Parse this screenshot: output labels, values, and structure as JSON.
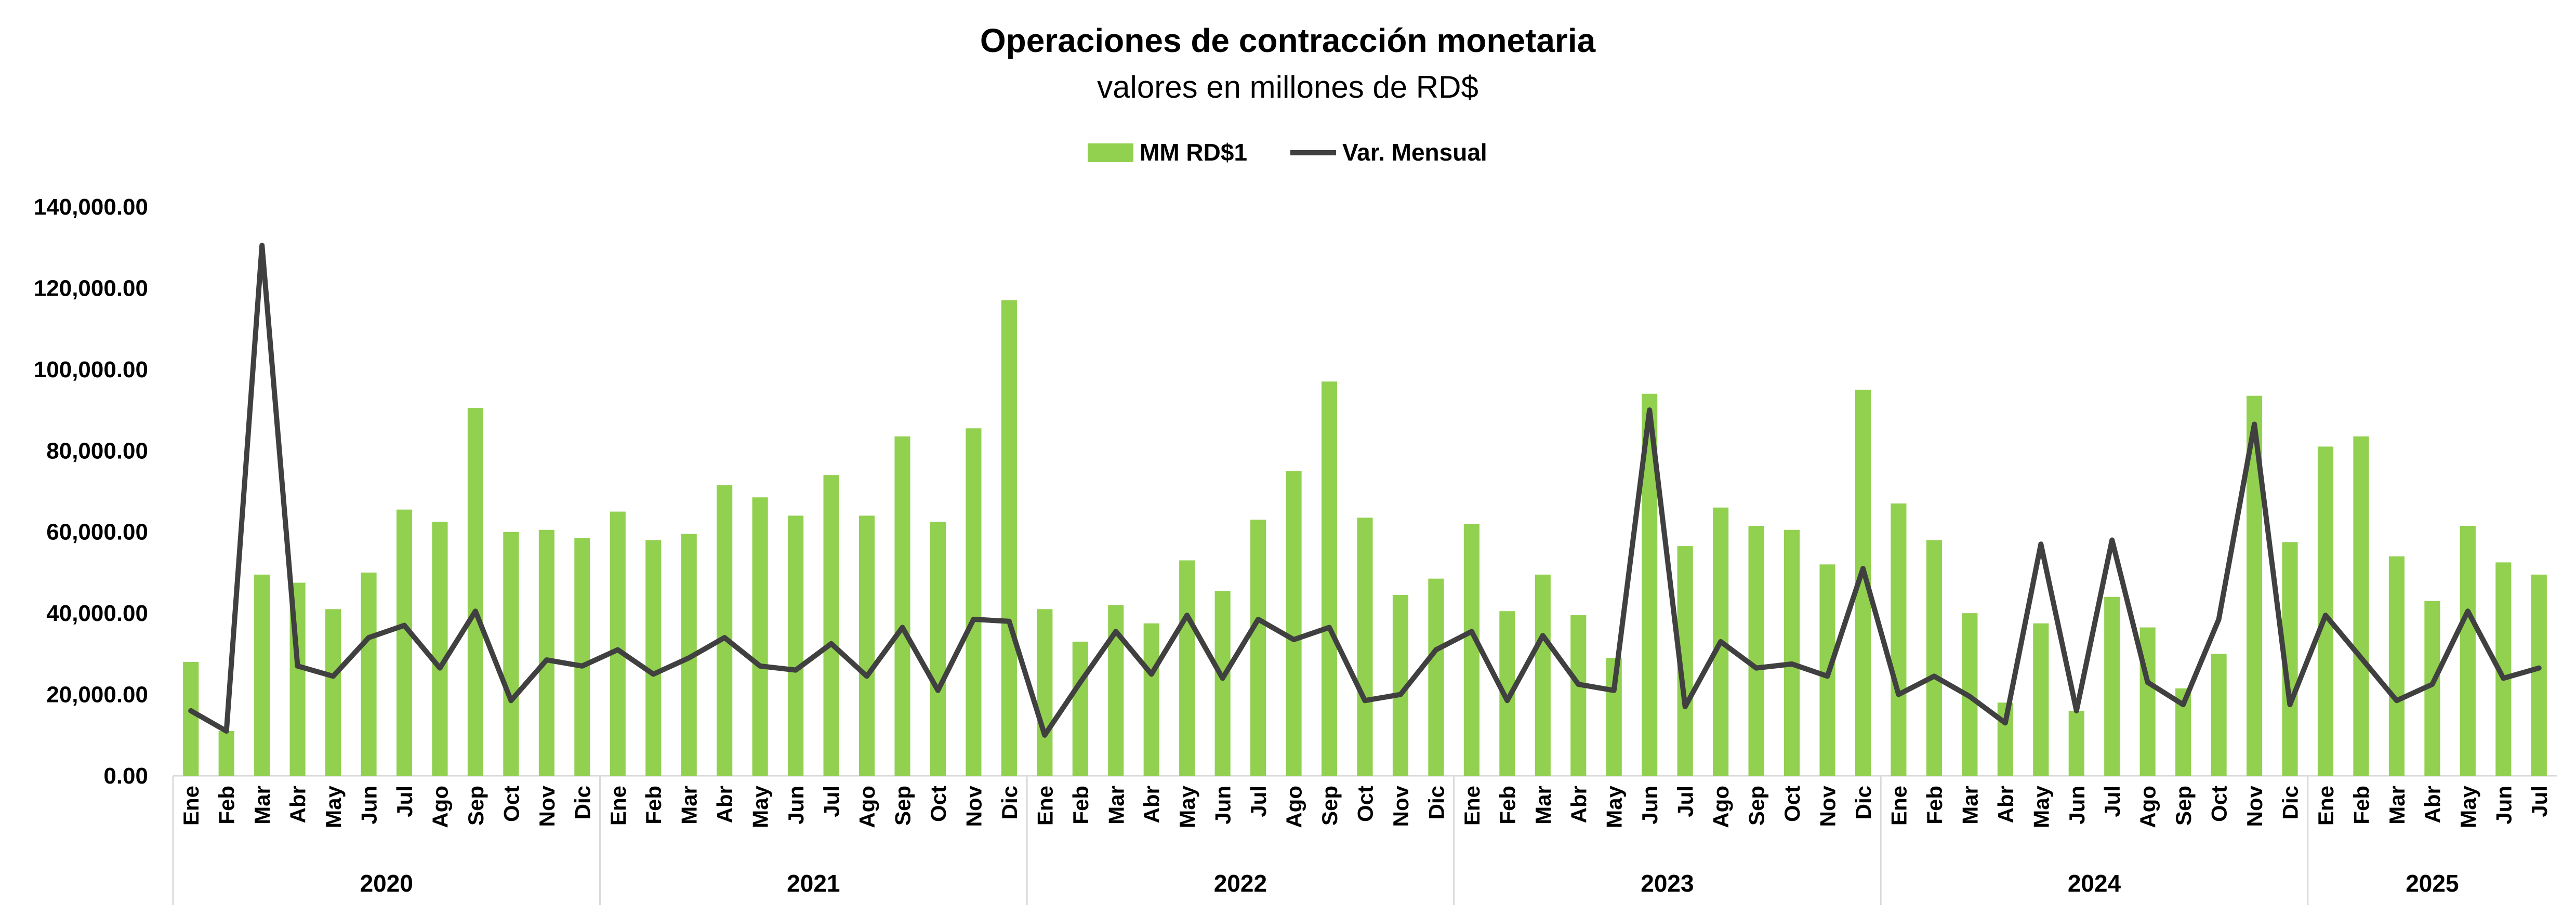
{
  "chart_data": {
    "type": "bar",
    "title": "Operaciones de contracción monetaria",
    "subtitle": "valores en millones de RD$",
    "ylim": [
      0,
      140000
    ],
    "yticks": [
      0,
      20000,
      40000,
      60000,
      80000,
      100000,
      120000,
      140000
    ],
    "ytick_labels": [
      "0.00",
      "20,000.00",
      "40,000.00",
      "60,000.00",
      "80,000.00",
      "100,000.00",
      "120,000.00",
      "140,000.00"
    ],
    "legend_position": "top-center",
    "months": [
      "Ene",
      "Feb",
      "Mar",
      "Abr",
      "May",
      "Jun",
      "Jul",
      "Ago",
      "Sep",
      "Oct",
      "Nov",
      "Dic"
    ],
    "years": [
      {
        "label": "2020",
        "months": 12
      },
      {
        "label": "2021",
        "months": 12
      },
      {
        "label": "2022",
        "months": 12
      },
      {
        "label": "2023",
        "months": 12
      },
      {
        "label": "2024",
        "months": 12
      },
      {
        "label": "2025",
        "months": 7
      }
    ],
    "series": [
      {
        "name": "MM RD$1",
        "kind": "bar",
        "color": "#92D050",
        "values": [
          28000,
          11000,
          49500,
          47500,
          41000,
          50000,
          65500,
          62500,
          90500,
          60000,
          60500,
          58500,
          65000,
          58000,
          59500,
          71500,
          68500,
          64000,
          74000,
          64000,
          83500,
          62500,
          85500,
          117000,
          41000,
          33000,
          42000,
          37500,
          53000,
          45500,
          63000,
          75000,
          97000,
          63500,
          44500,
          48500,
          62000,
          40500,
          49500,
          39500,
          29000,
          94000,
          56500,
          66000,
          61500,
          60500,
          52000,
          95000,
          67000,
          58000,
          40000,
          18000,
          37500,
          16000,
          44000,
          36500,
          21500,
          30000,
          93500,
          57500,
          81000,
          83500,
          54000,
          43000,
          61500,
          52500,
          49500
        ]
      },
      {
        "name": "Var. Mensual",
        "kind": "line",
        "color": "#404040",
        "values": [
          16000,
          11000,
          130500,
          27000,
          24500,
          34000,
          37000,
          26500,
          40500,
          18500,
          28500,
          27000,
          31000,
          25000,
          29000,
          34000,
          27000,
          26000,
          32500,
          24500,
          36500,
          21000,
          38500,
          38000,
          10000,
          23000,
          35500,
          25000,
          39500,
          24000,
          38500,
          33500,
          36500,
          18500,
          20000,
          31000,
          35500,
          18500,
          34500,
          22500,
          21000,
          90000,
          17000,
          33000,
          26500,
          27500,
          24500,
          51000,
          20000,
          24500,
          19500,
          13000,
          57000,
          16000,
          58000,
          23000,
          17500,
          38500,
          86500,
          17500,
          39500,
          29000,
          18500,
          22500,
          40500,
          24000,
          26500
        ]
      }
    ]
  }
}
